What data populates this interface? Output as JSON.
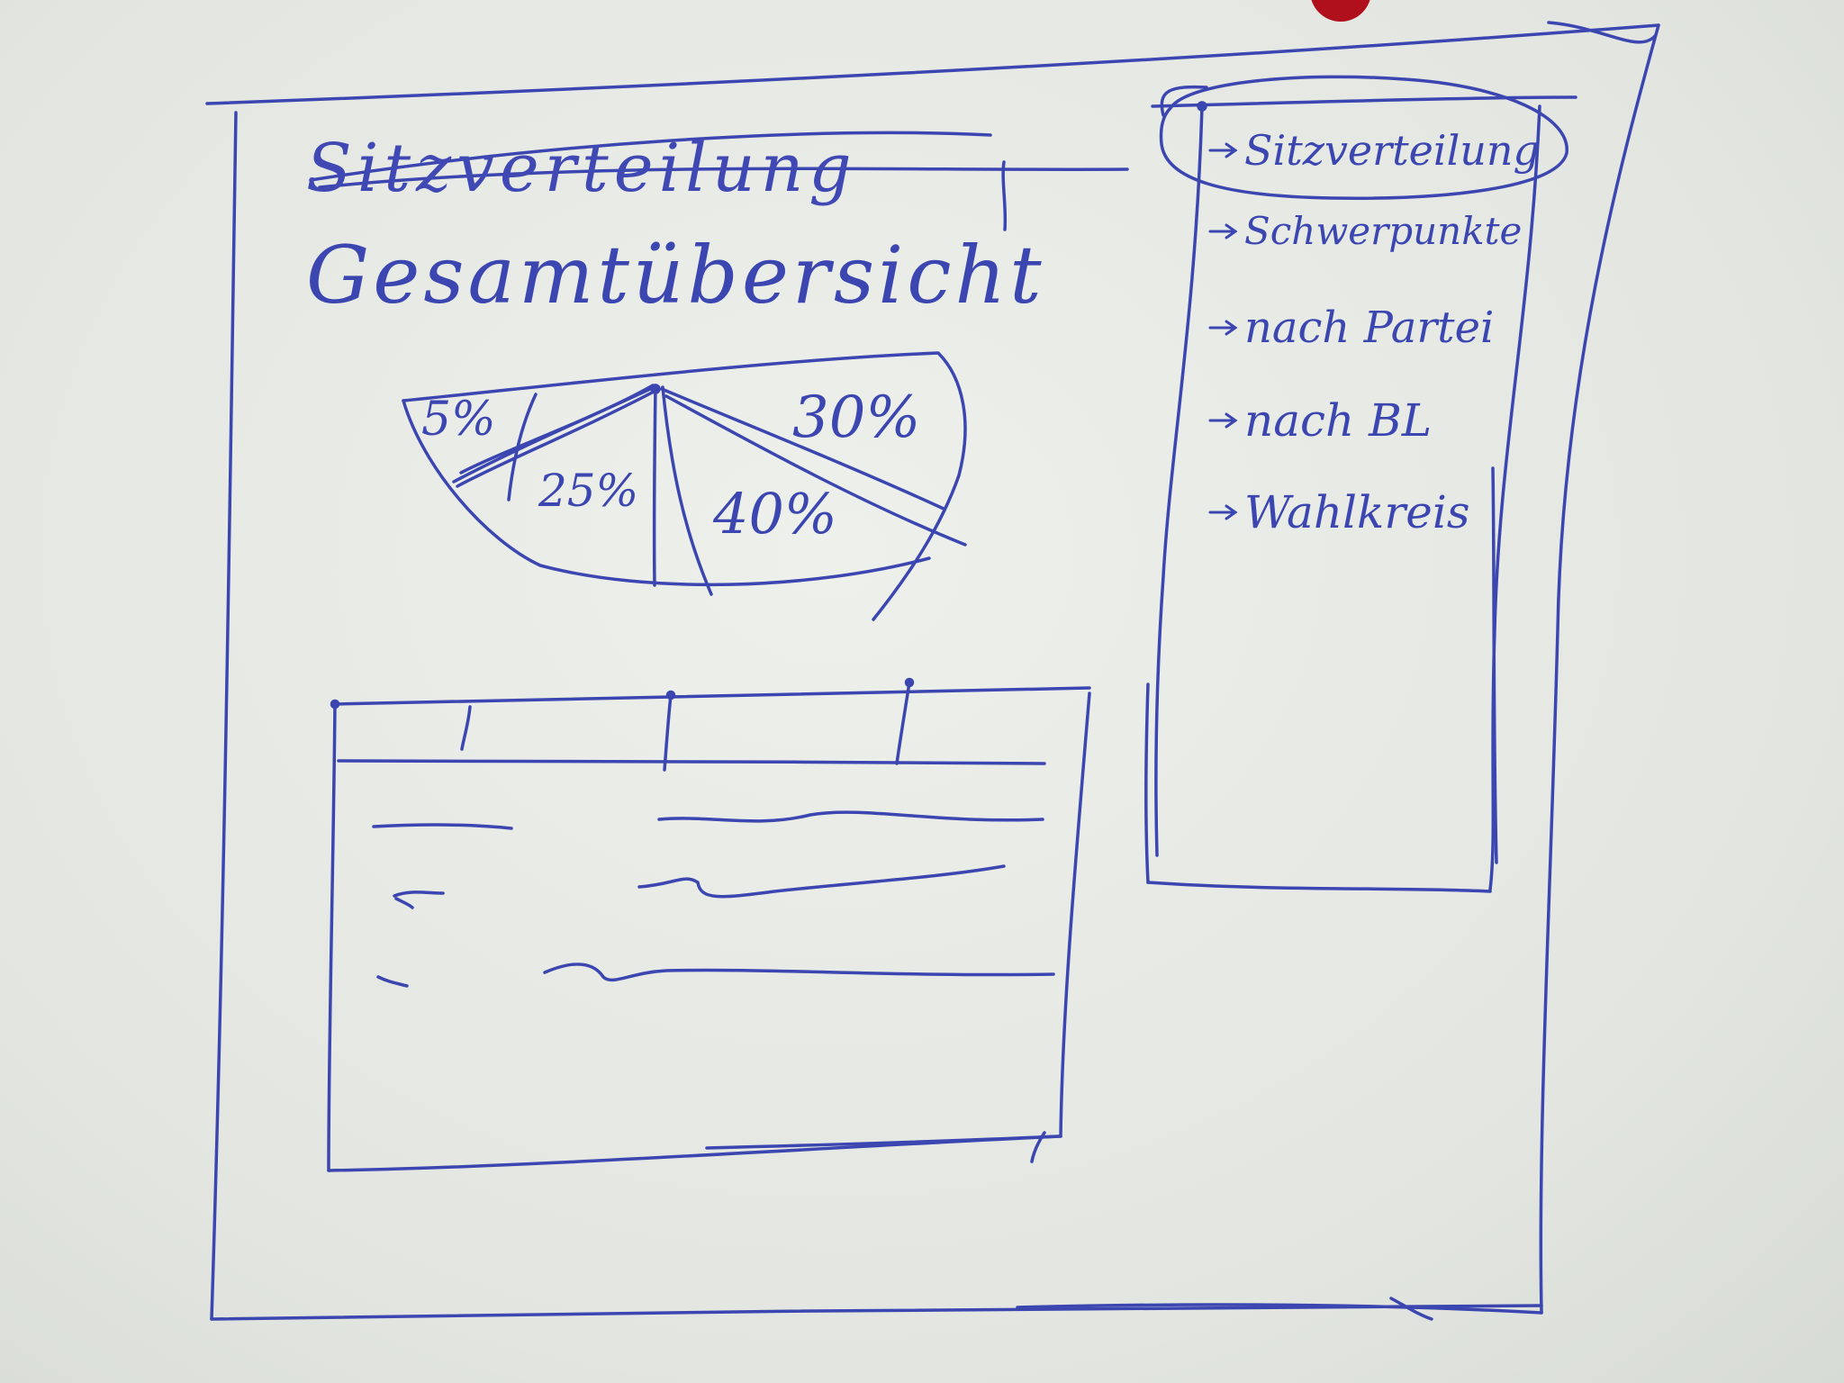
{
  "sketch": {
    "title_struck": "Sitzverteilung",
    "title": "Gesamtübersicht",
    "pie_labels": [
      "5%",
      "30%",
      "25%",
      "40%"
    ],
    "nav_items": [
      {
        "label": "Sitzverteilung",
        "selected": true
      },
      {
        "label": "Schwerpunkte"
      },
      {
        "label": "nach Partei"
      },
      {
        "label": "nach BL"
      },
      {
        "label": "Wahlkreis"
      }
    ],
    "ink_color": "#3b46b0",
    "pin_color": "#b0101c"
  }
}
